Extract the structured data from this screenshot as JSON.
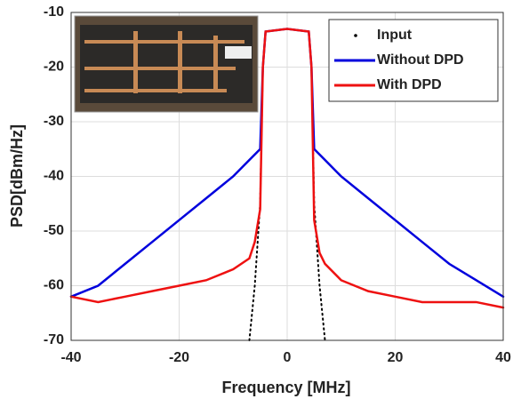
{
  "chart_data": {
    "type": "line",
    "x_label": "Frequency [MHz]",
    "y_label": "PSD[dBm/Hz]",
    "x": [
      -40,
      -35,
      -30,
      -25,
      -20,
      -15,
      -10,
      -7,
      -6,
      -5,
      -4.5,
      -4,
      0,
      4,
      4.5,
      5,
      6,
      7,
      10,
      15,
      20,
      25,
      30,
      35,
      40
    ],
    "series": [
      {
        "name": "Input",
        "color": "#000000",
        "style": "dotted",
        "values": [
          null,
          null,
          null,
          null,
          null,
          null,
          null,
          -70,
          -60,
          -45,
          -20,
          -13.5,
          -13,
          -13.5,
          -20,
          -45,
          -60,
          -70,
          null,
          null,
          null,
          null,
          null,
          null,
          null
        ]
      },
      {
        "name": "Without DPD",
        "color": "#0000dd",
        "style": "solid",
        "values": [
          -62,
          -60,
          -56,
          -52,
          -48,
          -44,
          -40,
          -37,
          -36,
          -35,
          -20,
          -13.5,
          -13,
          -13.5,
          -20,
          -35,
          -36,
          -37,
          -40,
          -44,
          -48,
          -52,
          -56,
          -59,
          -62
        ]
      },
      {
        "name": "With DPD",
        "color": "#ee1111",
        "style": "solid",
        "values": [
          -62,
          -63,
          -62,
          -61,
          -60,
          -59,
          -57,
          -55,
          -52,
          -46,
          -20,
          -13.5,
          -13,
          -13.5,
          -20,
          -48,
          -54,
          -56,
          -59,
          -61,
          -62,
          -63,
          -63,
          -63,
          -64
        ]
      }
    ],
    "xlim": [
      -40,
      40
    ],
    "xticks": [
      -40,
      -20,
      0,
      20,
      40
    ],
    "ylim": [
      -70,
      -10
    ],
    "yticks": [
      -70,
      -60,
      -50,
      -40,
      -30,
      -20,
      -10
    ],
    "grid": true,
    "legend": "upper-right"
  }
}
